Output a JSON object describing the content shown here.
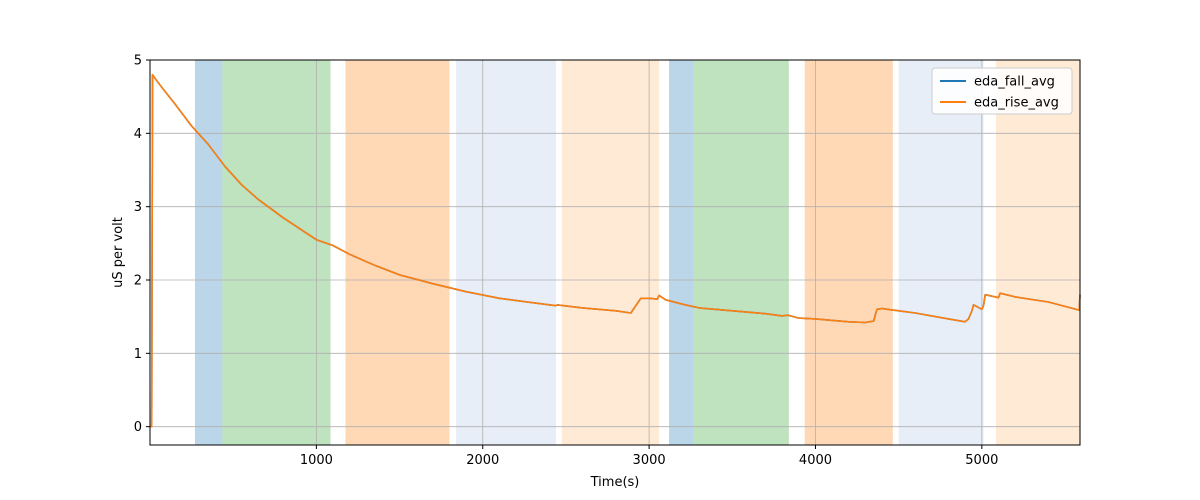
{
  "chart_data": {
    "type": "line",
    "xlabel": "Time(s)",
    "ylabel": "uS per volt",
    "xlim": [
      0,
      5590
    ],
    "ylim": [
      -0.25,
      5.0
    ],
    "x_ticks": [
      1000,
      2000,
      3000,
      4000,
      5000
    ],
    "y_ticks": [
      0,
      1,
      2,
      3,
      4,
      5
    ],
    "grid": true,
    "legend_position": "top-right",
    "shaded_regions": [
      {
        "x0": 270,
        "x1": 435,
        "color": "#1f77b4",
        "opacity": 0.3
      },
      {
        "x0": 435,
        "x1": 1085,
        "color": "#2ca02c",
        "opacity": 0.3
      },
      {
        "x0": 1175,
        "x1": 1800,
        "color": "#ff7f0e",
        "opacity": 0.3
      },
      {
        "x0": 1840,
        "x1": 2440,
        "color": "#aec7e8",
        "opacity": 0.3
      },
      {
        "x0": 2475,
        "x1": 3060,
        "color": "#ffbb78",
        "opacity": 0.3
      },
      {
        "x0": 3120,
        "x1": 3265,
        "color": "#1f77b4",
        "opacity": 0.3
      },
      {
        "x0": 3265,
        "x1": 3840,
        "color": "#2ca02c",
        "opacity": 0.3
      },
      {
        "x0": 3935,
        "x1": 4465,
        "color": "#ff7f0e",
        "opacity": 0.3
      },
      {
        "x0": 4500,
        "x1": 5010,
        "color": "#aec7e8",
        "opacity": 0.3
      },
      {
        "x0": 5085,
        "x1": 5590,
        "color": "#ffbb78",
        "opacity": 0.3
      }
    ],
    "series": [
      {
        "name": "eda_fall_avg",
        "color": "#1f77b4",
        "x": [
          0,
          10,
          15,
          30,
          80,
          150,
          250,
          350,
          450,
          550,
          650,
          800,
          900,
          1000,
          1100,
          1200,
          1350,
          1500,
          1700,
          1900,
          2100,
          2300,
          2440,
          2450,
          2600,
          2800,
          2890,
          2920,
          2950,
          3000,
          3050,
          3060,
          3100,
          3200,
          3300,
          3500,
          3700,
          3800,
          3830,
          3850,
          3900,
          4000,
          4200,
          4300,
          4350,
          4360,
          4370,
          4400,
          4500,
          4600,
          4800,
          4900,
          4920,
          4940,
          4950,
          4960,
          5000,
          5010,
          5020,
          5100,
          5110,
          5200,
          5400,
          5585,
          5590
        ],
        "y": [
          0,
          0,
          4.8,
          4.75,
          4.6,
          4.4,
          4.1,
          3.85,
          3.55,
          3.3,
          3.1,
          2.85,
          2.7,
          2.55,
          2.47,
          2.35,
          2.2,
          2.07,
          1.95,
          1.84,
          1.75,
          1.69,
          1.65,
          1.66,
          1.62,
          1.58,
          1.55,
          1.65,
          1.75,
          1.75,
          1.74,
          1.79,
          1.73,
          1.67,
          1.62,
          1.58,
          1.54,
          1.51,
          1.52,
          1.51,
          1.48,
          1.47,
          1.43,
          1.42,
          1.44,
          1.53,
          1.6,
          1.61,
          1.58,
          1.55,
          1.47,
          1.43,
          1.47,
          1.58,
          1.66,
          1.65,
          1.6,
          1.65,
          1.8,
          1.76,
          1.82,
          1.77,
          1.7,
          1.59,
          1.8
        ]
      },
      {
        "name": "eda_rise_avg",
        "color": "#ff7f0e",
        "x": [
          0,
          10,
          15,
          30,
          80,
          150,
          250,
          350,
          450,
          550,
          650,
          800,
          900,
          1000,
          1100,
          1200,
          1350,
          1500,
          1700,
          1900,
          2100,
          2300,
          2440,
          2450,
          2600,
          2800,
          2890,
          2920,
          2950,
          3000,
          3050,
          3060,
          3100,
          3200,
          3300,
          3500,
          3700,
          3800,
          3830,
          3850,
          3900,
          4000,
          4200,
          4300,
          4350,
          4360,
          4370,
          4400,
          4500,
          4600,
          4800,
          4900,
          4920,
          4940,
          4950,
          4960,
          5000,
          5010,
          5020,
          5100,
          5110,
          5200,
          5400,
          5585,
          5590
        ],
        "y": [
          0,
          0,
          4.8,
          4.75,
          4.6,
          4.4,
          4.1,
          3.85,
          3.55,
          3.3,
          3.1,
          2.85,
          2.7,
          2.55,
          2.47,
          2.35,
          2.2,
          2.07,
          1.95,
          1.84,
          1.75,
          1.69,
          1.65,
          1.66,
          1.62,
          1.58,
          1.55,
          1.65,
          1.75,
          1.75,
          1.74,
          1.79,
          1.73,
          1.67,
          1.62,
          1.58,
          1.54,
          1.51,
          1.52,
          1.51,
          1.48,
          1.47,
          1.43,
          1.42,
          1.44,
          1.53,
          1.6,
          1.61,
          1.58,
          1.55,
          1.47,
          1.43,
          1.47,
          1.58,
          1.66,
          1.65,
          1.6,
          1.65,
          1.8,
          1.76,
          1.82,
          1.77,
          1.7,
          1.59,
          1.8
        ]
      }
    ]
  }
}
